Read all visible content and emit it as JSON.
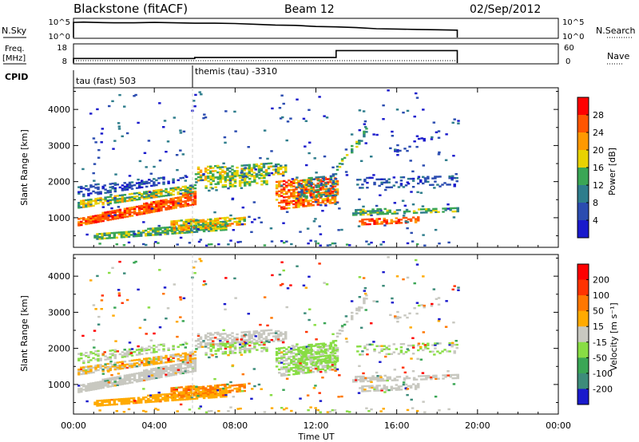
{
  "header": {
    "station": "Blackstone (fitACF)",
    "beam": "Beam 12",
    "date": "02/Sep/2012"
  },
  "left_labels": {
    "nsky": "N.Sky",
    "freq_top": "Freq.",
    "freq_unit": "[MHz]",
    "cpid": "CPID"
  },
  "right_labels": {
    "nsearch": "N.Search",
    "nave": "Nave"
  },
  "chart_data": [
    {
      "type": "line",
      "name": "noise",
      "ytick_labels_left": [
        "10^5",
        "10^0"
      ],
      "ytick_labels_right": [
        "10^5",
        "10^0"
      ],
      "ylim": [
        0,
        5
      ],
      "x": [
        0.0,
        0.5,
        1,
        2,
        3,
        4,
        5,
        6,
        7,
        8,
        9,
        10,
        11,
        12,
        13,
        14,
        15,
        16,
        17,
        18,
        19.0
      ],
      "values": [
        4.1,
        4.2,
        4.1,
        4.0,
        4.0,
        4.1,
        4.0,
        3.9,
        3.9,
        3.8,
        3.6,
        3.4,
        3.3,
        3.0,
        2.9,
        2.7,
        2.4,
        2.3,
        2.2,
        2.1,
        2.0
      ]
    },
    {
      "type": "line",
      "name": "frequency",
      "ytick_labels_left": [
        "18",
        "8"
      ],
      "ytick_labels_right": [
        "60",
        "0"
      ],
      "ylim": [
        8,
        18
      ],
      "x": [
        0.0,
        6.0,
        6.0,
        13.0,
        13.0,
        19.0
      ],
      "values": [
        10.5,
        10.5,
        11.0,
        11.0,
        14.8,
        14.8
      ]
    },
    {
      "type": "table",
      "name": "cpid",
      "entries": [
        {
          "start": 0,
          "label": "tau (fast) 503"
        },
        {
          "start": 6,
          "label": "themis (tau) -3310"
        }
      ]
    },
    {
      "type": "heatmap",
      "name": "power",
      "ylabel": "Slant Range [km]",
      "yticks": [
        1000,
        2000,
        3000,
        4000
      ],
      "ylim": [
        180,
        4600
      ],
      "colorbar_label": "Power [dB]",
      "colorbar_ticks": [
        "28",
        "24",
        "20",
        "16",
        "12",
        "8",
        "4"
      ],
      "colors": [
        "#1a1acc",
        "#2b4cb0",
        "#2e7d8c",
        "#3aa655",
        "#e8d200",
        "#ff9900",
        "#ff5500",
        "#ff0000"
      ]
    },
    {
      "type": "heatmap",
      "name": "velocity",
      "ylabel": "Slant Range [km]",
      "yticks": [
        1000,
        2000,
        3000,
        4000
      ],
      "ylim": [
        180,
        4600
      ],
      "xlabel": "Time UT",
      "xtick_labels": [
        "00:00",
        "04:00",
        "08:00",
        "12:00",
        "16:00",
        "20:00",
        "00:00"
      ],
      "colorbar_label": "Velocity [m s⁻¹]",
      "colorbar_ticks": [
        "200",
        "100",
        "50",
        "15",
        "-15",
        "-50",
        "-100",
        "-200"
      ],
      "colors": [
        "#1a1acc",
        "#3d8c7a",
        "#3aa655",
        "#88dd44",
        "#c8c8c0",
        "#ffaa00",
        "#ff7700",
        "#ff3300",
        "#ff0000"
      ]
    }
  ]
}
